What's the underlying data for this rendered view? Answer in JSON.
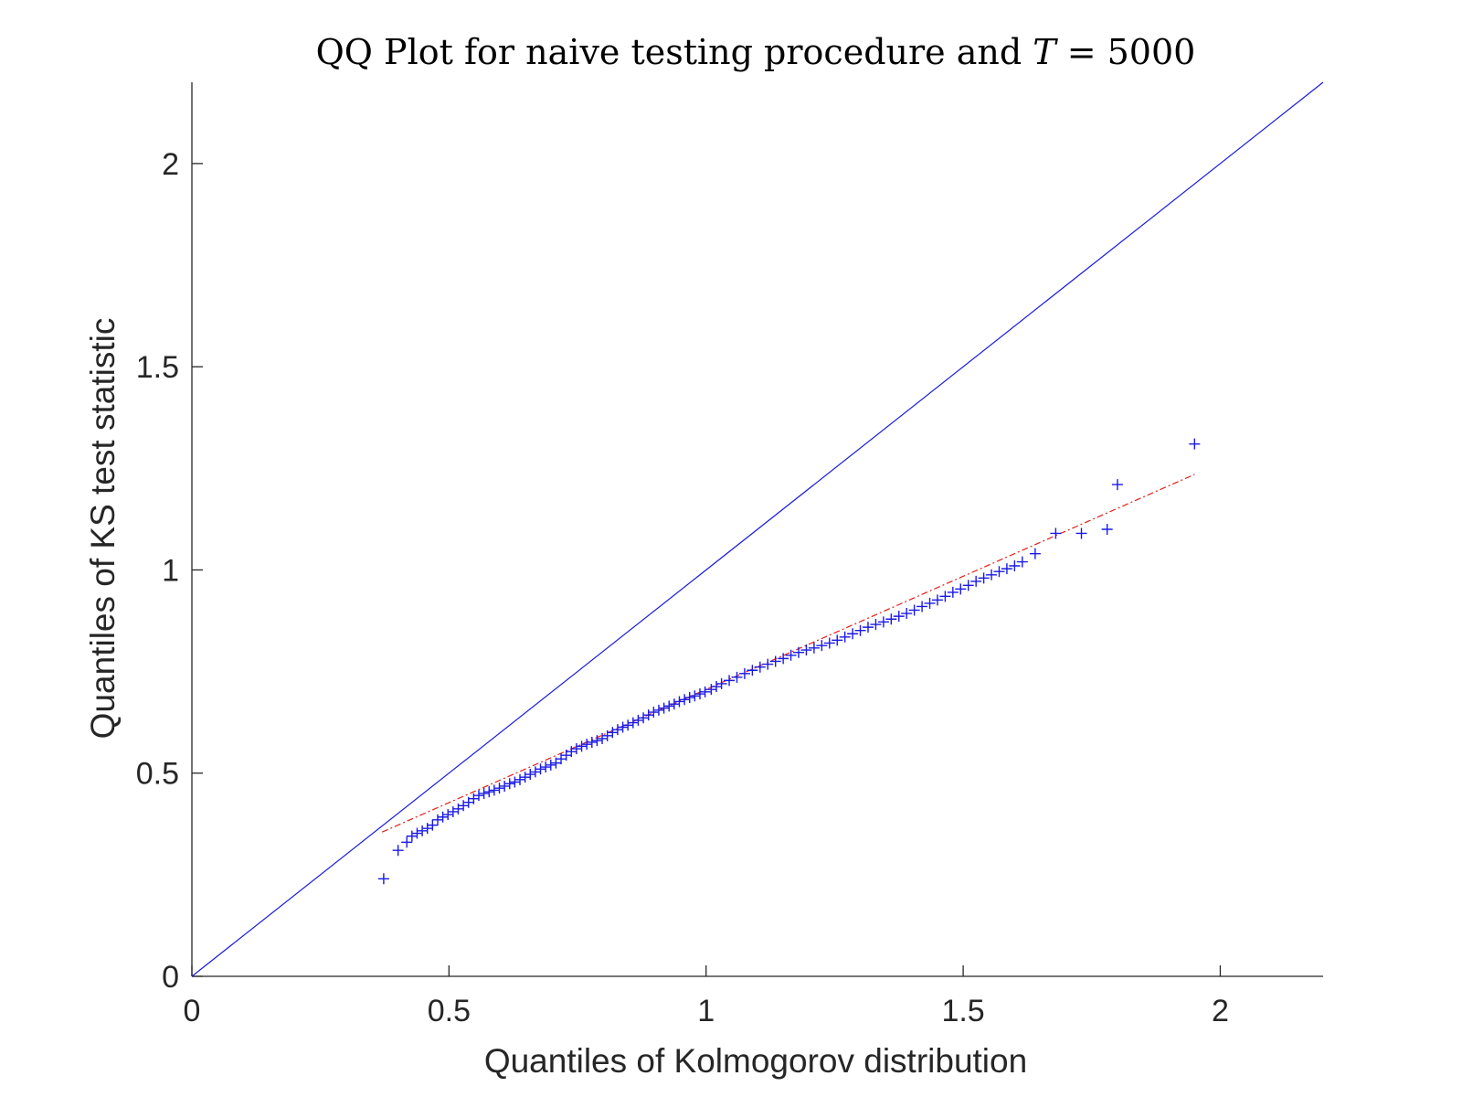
{
  "chart_data": {
    "type": "scatter",
    "title": {
      "prefix": "QQ Plot for naive testing procedure and ",
      "math_var": "T",
      "suffix": " = 5000"
    },
    "xlabel": "Quantiles of Kolmogorov distribution",
    "ylabel": "Quantiles of KS test statistic",
    "xlim": [
      0,
      2.2
    ],
    "ylim": [
      0,
      2.2
    ],
    "x_ticks": [
      {
        "value": 0,
        "label": "0"
      },
      {
        "value": 0.5,
        "label": "0.5"
      },
      {
        "value": 1,
        "label": "1"
      },
      {
        "value": 1.5,
        "label": "1.5"
      },
      {
        "value": 2,
        "label": "2"
      }
    ],
    "y_ticks": [
      {
        "value": 0,
        "label": "0"
      },
      {
        "value": 0.5,
        "label": "0.5"
      },
      {
        "value": 1,
        "label": "1"
      },
      {
        "value": 1.5,
        "label": "1.5"
      },
      {
        "value": 2,
        "label": "2"
      }
    ],
    "grid": false,
    "reference_line": {
      "points": [
        [
          0,
          0
        ],
        [
          2.2,
          2.2
        ]
      ],
      "color": "#1a1adb",
      "style": "solid"
    },
    "fit_line": {
      "points": [
        [
          0.37,
          0.355
        ],
        [
          1.95,
          1.235
        ]
      ],
      "color": "#e0201a",
      "style": "dash-dot"
    },
    "series": [
      {
        "marker": "+",
        "color": "#1a1ae6",
        "points": [
          [
            0.373,
            0.24
          ],
          [
            0.401,
            0.31
          ],
          [
            0.418,
            0.33
          ],
          [
            0.428,
            0.345
          ],
          [
            0.438,
            0.352
          ],
          [
            0.448,
            0.358
          ],
          [
            0.458,
            0.364
          ],
          [
            0.468,
            0.372
          ],
          [
            0.478,
            0.385
          ],
          [
            0.488,
            0.392
          ],
          [
            0.498,
            0.398
          ],
          [
            0.508,
            0.405
          ],
          [
            0.518,
            0.412
          ],
          [
            0.528,
            0.42
          ],
          [
            0.538,
            0.428
          ],
          [
            0.548,
            0.437
          ],
          [
            0.558,
            0.445
          ],
          [
            0.568,
            0.45
          ],
          [
            0.578,
            0.454
          ],
          [
            0.588,
            0.458
          ],
          [
            0.598,
            0.463
          ],
          [
            0.608,
            0.468
          ],
          [
            0.618,
            0.474
          ],
          [
            0.628,
            0.478
          ],
          [
            0.638,
            0.484
          ],
          [
            0.648,
            0.49
          ],
          [
            0.658,
            0.497
          ],
          [
            0.668,
            0.503
          ],
          [
            0.678,
            0.51
          ],
          [
            0.688,
            0.515
          ],
          [
            0.698,
            0.52
          ],
          [
            0.708,
            0.525
          ],
          [
            0.718,
            0.535
          ],
          [
            0.728,
            0.544
          ],
          [
            0.738,
            0.553
          ],
          [
            0.748,
            0.56
          ],
          [
            0.758,
            0.566
          ],
          [
            0.768,
            0.571
          ],
          [
            0.778,
            0.576
          ],
          [
            0.788,
            0.58
          ],
          [
            0.798,
            0.585
          ],
          [
            0.808,
            0.592
          ],
          [
            0.818,
            0.6
          ],
          [
            0.828,
            0.607
          ],
          [
            0.838,
            0.613
          ],
          [
            0.848,
            0.618
          ],
          [
            0.858,
            0.624
          ],
          [
            0.868,
            0.63
          ],
          [
            0.878,
            0.636
          ],
          [
            0.888,
            0.643
          ],
          [
            0.898,
            0.65
          ],
          [
            0.908,
            0.655
          ],
          [
            0.918,
            0.66
          ],
          [
            0.928,
            0.665
          ],
          [
            0.938,
            0.67
          ],
          [
            0.948,
            0.676
          ],
          [
            0.958,
            0.681
          ],
          [
            0.968,
            0.686
          ],
          [
            0.978,
            0.69
          ],
          [
            0.988,
            0.695
          ],
          [
            0.998,
            0.7
          ],
          [
            1.01,
            0.706
          ],
          [
            1.02,
            0.713
          ],
          [
            1.03,
            0.72
          ],
          [
            1.045,
            0.728
          ],
          [
            1.06,
            0.736
          ],
          [
            1.075,
            0.745
          ],
          [
            1.09,
            0.753
          ],
          [
            1.105,
            0.761
          ],
          [
            1.12,
            0.768
          ],
          [
            1.135,
            0.775
          ],
          [
            1.15,
            0.782
          ],
          [
            1.165,
            0.79
          ],
          [
            1.18,
            0.797
          ],
          [
            1.195,
            0.803
          ],
          [
            1.21,
            0.808
          ],
          [
            1.225,
            0.814
          ],
          [
            1.24,
            0.82
          ],
          [
            1.255,
            0.827
          ],
          [
            1.27,
            0.835
          ],
          [
            1.285,
            0.843
          ],
          [
            1.3,
            0.851
          ],
          [
            1.315,
            0.859
          ],
          [
            1.33,
            0.866
          ],
          [
            1.345,
            0.872
          ],
          [
            1.36,
            0.879
          ],
          [
            1.375,
            0.886
          ],
          [
            1.39,
            0.893
          ],
          [
            1.405,
            0.901
          ],
          [
            1.42,
            0.91
          ],
          [
            1.435,
            0.918
          ],
          [
            1.45,
            0.926
          ],
          [
            1.465,
            0.935
          ],
          [
            1.48,
            0.945
          ],
          [
            1.495,
            0.953
          ],
          [
            1.51,
            0.962
          ],
          [
            1.525,
            0.972
          ],
          [
            1.54,
            0.98
          ],
          [
            1.555,
            0.988
          ],
          [
            1.57,
            0.996
          ],
          [
            1.585,
            1.003
          ],
          [
            1.6,
            1.01
          ],
          [
            1.615,
            1.02
          ],
          [
            1.64,
            1.04
          ],
          [
            1.68,
            1.09
          ],
          [
            1.73,
            1.09
          ],
          [
            1.78,
            1.1
          ],
          [
            1.8,
            1.21
          ],
          [
            1.95,
            1.31
          ]
        ]
      }
    ]
  }
}
